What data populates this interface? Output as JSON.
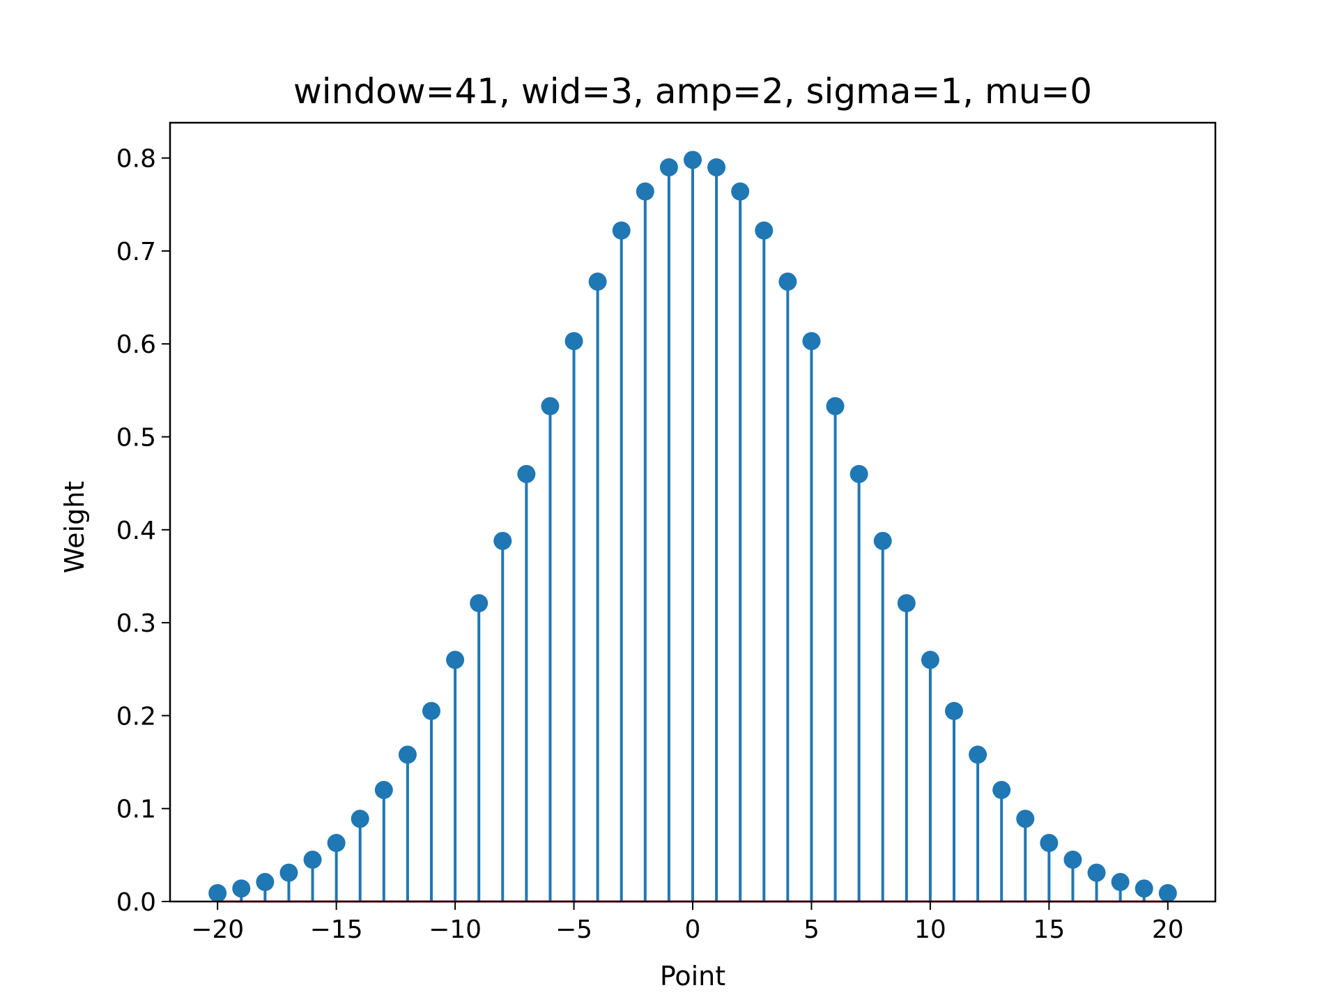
{
  "chart_data": {
    "type": "stem",
    "title": "window=41, wid=3, amp=2, sigma=1, mu=0",
    "xlabel": "Point",
    "ylabel": "Weight",
    "xlim": [
      -22,
      22
    ],
    "ylim": [
      0,
      0.838
    ],
    "xticks": [
      -20,
      -15,
      -10,
      -5,
      0,
      5,
      10,
      15,
      20
    ],
    "xtick_labels": [
      "−20",
      "−15",
      "−10",
      "−5",
      "0",
      "5",
      "10",
      "15",
      "20"
    ],
    "yticks": [
      0,
      0.1,
      0.2,
      0.3,
      0.4,
      0.5,
      0.6,
      0.7,
      0.8
    ],
    "ytick_labels": [
      "0.0",
      "0.1",
      "0.2",
      "0.3",
      "0.4",
      "0.5",
      "0.6",
      "0.7",
      "0.8"
    ],
    "grid": false,
    "colors": {
      "stem": "#1f77b4",
      "baseline": "#d62728",
      "axes": "#000000"
    },
    "x": [
      -20,
      -19,
      -18,
      -17,
      -16,
      -15,
      -14,
      -13,
      -12,
      -11,
      -10,
      -9,
      -8,
      -7,
      -6,
      -5,
      -4,
      -3,
      -2,
      -1,
      0,
      1,
      2,
      3,
      4,
      5,
      6,
      7,
      8,
      9,
      10,
      11,
      12,
      13,
      14,
      15,
      16,
      17,
      18,
      19,
      20
    ],
    "y": [
      0.009,
      0.014,
      0.021,
      0.031,
      0.045,
      0.063,
      0.089,
      0.12,
      0.158,
      0.205,
      0.26,
      0.321,
      0.388,
      0.46,
      0.533,
      0.603,
      0.667,
      0.722,
      0.764,
      0.79,
      0.798,
      0.79,
      0.764,
      0.722,
      0.667,
      0.603,
      0.533,
      0.46,
      0.388,
      0.321,
      0.26,
      0.205,
      0.158,
      0.12,
      0.089,
      0.063,
      0.045,
      0.031,
      0.021,
      0.014,
      0.009
    ]
  }
}
